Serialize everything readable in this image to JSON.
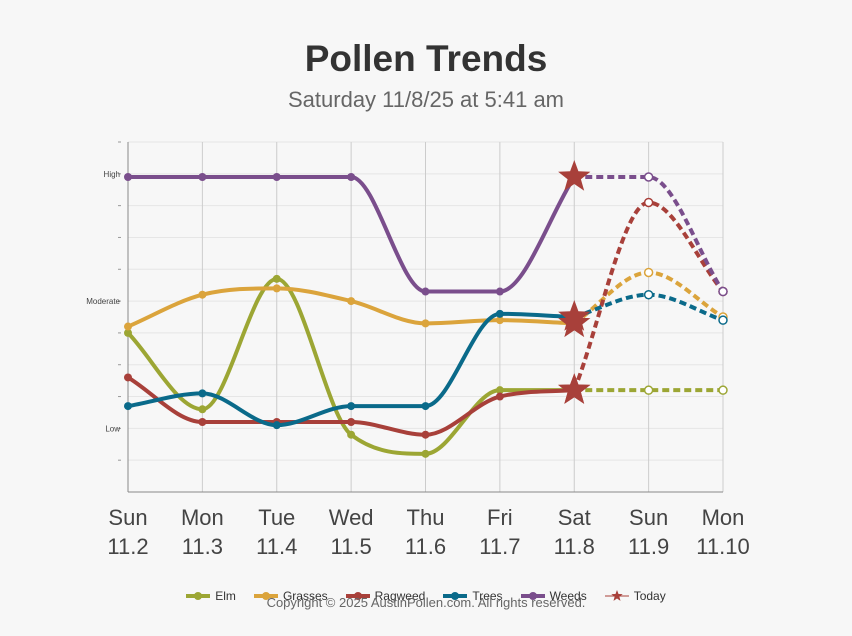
{
  "header": {
    "title": "Pollen Trends",
    "subtitle": "Saturday 11/8/25 at 5:41 am"
  },
  "footer": {
    "copyright": "Copyright © 2025 AustinPollen.com.  All rights reserved."
  },
  "colors": {
    "Elm": "#9ca634",
    "Grasses": "#dba43c",
    "Ragweed": "#a8403a",
    "Trees": "#0a6a8a",
    "Weeds": "#7a4e8c",
    "Today": "#a8403a"
  },
  "chart_data": {
    "type": "line",
    "title": "Pollen Trends",
    "subtitle": "Saturday 11/8/25 at 5:41 am",
    "days": [
      "Sun",
      "Mon",
      "Tue",
      "Wed",
      "Thu",
      "Fri",
      "Sat",
      "Sun",
      "Mon"
    ],
    "dates": [
      "11.2",
      "11.3",
      "11.4",
      "11.5",
      "11.6",
      "11.7",
      "11.8",
      "11.9",
      "11.10"
    ],
    "ylim": [
      0,
      11
    ],
    "y_labels": [
      {
        "label": "Low",
        "value": 2
      },
      {
        "label": "Moderate",
        "value": 6
      },
      {
        "label": "High",
        "value": 10
      }
    ],
    "grid": true,
    "today_index": 6,
    "forecast_start_index": 6,
    "legend_position": "bottom",
    "series": [
      {
        "name": "Elm",
        "values": [
          5.0,
          2.6,
          6.7,
          1.8,
          1.2,
          3.2,
          3.2,
          3.2,
          3.2
        ]
      },
      {
        "name": "Grasses",
        "values": [
          5.2,
          6.2,
          6.4,
          6.0,
          5.3,
          5.4,
          5.3,
          6.9,
          5.5
        ]
      },
      {
        "name": "Ragweed",
        "values": [
          3.6,
          2.2,
          2.2,
          2.2,
          1.8,
          3.0,
          3.2,
          9.1,
          6.3
        ]
      },
      {
        "name": "Trees",
        "values": [
          2.7,
          3.1,
          2.1,
          2.7,
          2.7,
          5.6,
          5.5,
          6.2,
          5.4
        ]
      },
      {
        "name": "Weeds",
        "values": [
          9.9,
          9.9,
          9.9,
          9.9,
          6.3,
          6.3,
          9.9,
          9.9,
          6.3
        ]
      }
    ],
    "legend": [
      "Elm",
      "Grasses",
      "Ragweed",
      "Trees",
      "Weeds",
      "Today"
    ]
  }
}
